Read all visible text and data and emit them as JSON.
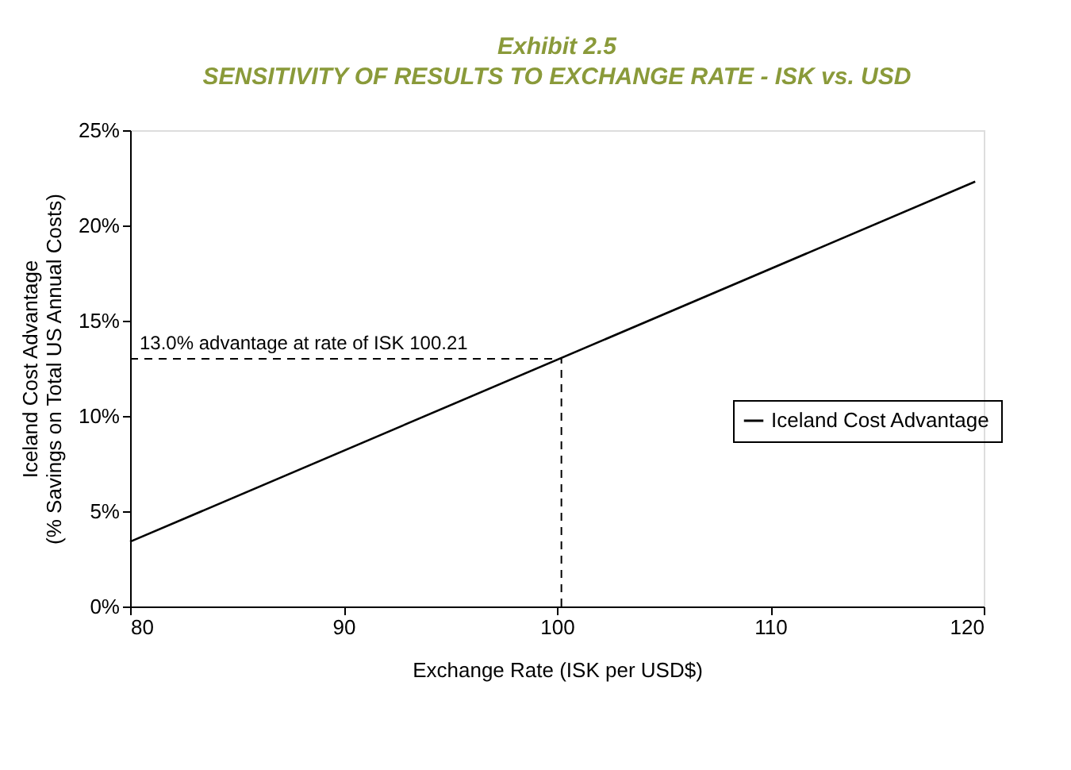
{
  "chart_data": {
    "type": "line",
    "title": "Exhibit 2.5",
    "subtitle": "SENSITIVITY OF RESULTS TO EXCHANGE RATE - ISK vs. USD",
    "xlabel": "Exchange Rate (ISK per USD$)",
    "ylabel": "Iceland Cost Advantage\n(% Savings on Total US Annual Costs)",
    "x": [
      80,
      119.6
    ],
    "series": [
      {
        "name": "Iceland Cost Advantage",
        "color": "#000000",
        "values": [
          3.4,
          22.3
        ]
      }
    ],
    "xlim": [
      80,
      120
    ],
    "xticks": [
      80,
      90,
      100,
      110,
      120
    ],
    "ylim": [
      0,
      25
    ],
    "yticks": [
      {
        "value": 0,
        "label": "0%"
      },
      {
        "value": 5,
        "label": "5%"
      },
      {
        "value": 10,
        "label": "10%"
      },
      {
        "value": 15,
        "label": "15%"
      },
      {
        "value": 20,
        "label": "20%"
      },
      {
        "value": 25,
        "label": "25%"
      }
    ],
    "ref_lines": [
      {
        "axis": "y",
        "value": 13.0,
        "label": "13.0% advantage at rate of ISK 100.21",
        "line_style": "dashed",
        "color": "#000000"
      },
      {
        "axis": "x",
        "value": 100.21,
        "line_style": "dashed",
        "color": "#000000"
      }
    ],
    "grid": false,
    "legend": "right",
    "marker": "none",
    "line_style": "solid"
  }
}
